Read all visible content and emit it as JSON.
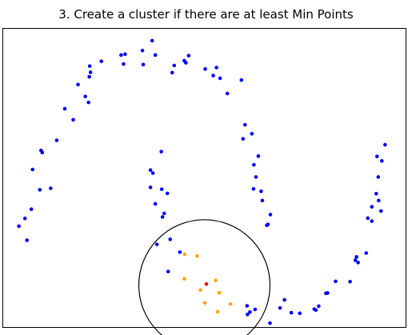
{
  "chart_data": {
    "type": "scatter",
    "title": "3. Create a cluster if there are at least Min Points",
    "xlabel": "",
    "ylabel": "",
    "xlim": [
      0,
      100
    ],
    "ylim": [
      0,
      100
    ],
    "axis_ticks": false,
    "grid": false,
    "colors": {
      "unclustered": "#0000ff",
      "neighbor": "#ffa500",
      "core": "#ff0000",
      "circle": "#000000"
    },
    "circle": {
      "center": [
        50.0,
        14.0
      ],
      "radius": 16.3
    },
    "series": [
      {
        "role": "unclustered",
        "points": [
          [
            37.0,
            96.0
          ],
          [
            34.6,
            92.7
          ],
          [
            37.8,
            91.2
          ],
          [
            30.3,
            91.5
          ],
          [
            29.3,
            91.2
          ],
          [
            29.9,
            88.2
          ],
          [
            34.8,
            88.0
          ],
          [
            24.4,
            89.1
          ],
          [
            21.5,
            87.5
          ],
          [
            21.7,
            85.4
          ],
          [
            21.4,
            83.9
          ],
          [
            18.6,
            81.3
          ],
          [
            20.4,
            77.3
          ],
          [
            21.2,
            75.3
          ],
          [
            15.3,
            73.2
          ],
          [
            17.4,
            69.5
          ],
          [
            46.1,
            91.0
          ],
          [
            45.0,
            89.3
          ],
          [
            45.4,
            88.6
          ],
          [
            42.5,
            87.7
          ],
          [
            42.0,
            85.3
          ],
          [
            50.2,
            86.5
          ],
          [
            53.0,
            87.0
          ],
          [
            52.2,
            84.3
          ],
          [
            53.9,
            83.4
          ],
          [
            59.2,
            82.8
          ],
          [
            55.7,
            78.3
          ],
          [
            60.1,
            67.8
          ],
          [
            61.8,
            64.8
          ],
          [
            59.6,
            63.1
          ],
          [
            63.4,
            57.3
          ],
          [
            62.3,
            54.4
          ],
          [
            62.8,
            50.3
          ],
          [
            62.2,
            46.3
          ],
          [
            64.1,
            45.5
          ],
          [
            64.4,
            42.4
          ],
          [
            66.4,
            37.7
          ],
          [
            65.8,
            34.4
          ],
          [
            65.5,
            34.1
          ],
          [
            13.3,
            62.6
          ],
          [
            9.4,
            59.2
          ],
          [
            9.7,
            58.5
          ],
          [
            7.3,
            52.8
          ],
          [
            11.8,
            46.5
          ],
          [
            9.1,
            46.0
          ],
          [
            7.0,
            39.5
          ],
          [
            5.4,
            36.4
          ],
          [
            3.9,
            33.8
          ],
          [
            5.9,
            29.1
          ],
          [
            39.3,
            58.8
          ],
          [
            36.6,
            52.6
          ],
          [
            37.2,
            51.6
          ],
          [
            36.6,
            46.8
          ],
          [
            39.4,
            46.2
          ],
          [
            40.8,
            44.8
          ],
          [
            37.8,
            41.3
          ],
          [
            40.0,
            38.1
          ],
          [
            39.6,
            36.9
          ],
          [
            41.5,
            29.4
          ],
          [
            38.2,
            27.7
          ],
          [
            43.9,
            25.1
          ],
          [
            41.0,
            18.6
          ],
          [
            94.9,
            61.1
          ],
          [
            92.9,
            57.2
          ],
          [
            94.1,
            55.7
          ],
          [
            93.2,
            50.3
          ],
          [
            92.7,
            44.7
          ],
          [
            93.3,
            42.4
          ],
          [
            91.6,
            40.3
          ],
          [
            93.9,
            38.9
          ],
          [
            90.6,
            36.5
          ],
          [
            91.6,
            35.5
          ],
          [
            87.8,
            23.5
          ],
          [
            87.5,
            22.4
          ],
          [
            88.2,
            21.6
          ],
          [
            90.2,
            24.8
          ],
          [
            82.6,
            15.3
          ],
          [
            86.2,
            15.2
          ],
          [
            80.6,
            11.4
          ],
          [
            80.2,
            11.3
          ],
          [
            78.4,
            7.0
          ],
          [
            77.3,
            6.0
          ],
          [
            77.7,
            5.7
          ],
          [
            73.7,
            4.6
          ],
          [
            71.6,
            4.8
          ],
          [
            69.9,
            9.1
          ],
          [
            68.8,
            6.4
          ],
          [
            60.6,
            7.1
          ],
          [
            62.6,
            5.9
          ],
          [
            61.3,
            5.0
          ],
          [
            60.7,
            4.2
          ],
          [
            66.3,
            1.3
          ]
        ]
      },
      {
        "role": "neighbor",
        "points": [
          [
            45.1,
            24.4
          ],
          [
            48.2,
            23.8
          ],
          [
            45.0,
            16.2
          ],
          [
            52.8,
            15.6
          ],
          [
            49.0,
            12.4
          ],
          [
            53.7,
            11.5
          ],
          [
            50.1,
            8.1
          ],
          [
            56.5,
            7.7
          ],
          [
            53.3,
            5.1
          ]
        ]
      },
      {
        "role": "core",
        "points": [
          [
            50.5,
            14.4
          ]
        ]
      }
    ]
  }
}
